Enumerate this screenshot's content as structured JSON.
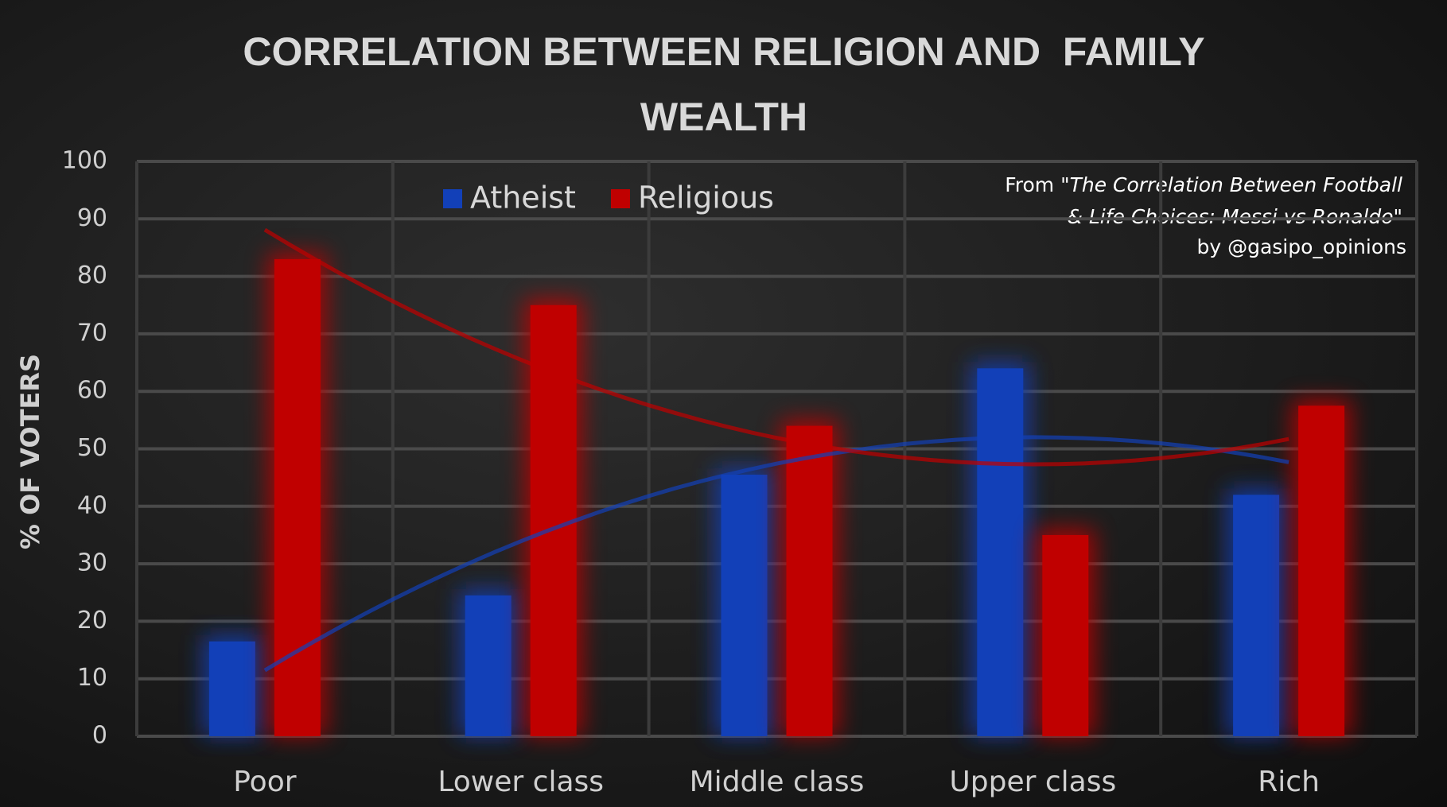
{
  "chart_data": {
    "type": "bar",
    "title": "CORRELATION BETWEEN RELIGION AND  FAMILY WEALTH",
    "y_label": "% OF VOTERS",
    "source_lines": [
      "From \"",
      "The Correlation Between Football",
      "& Life Choices: Messi vs Ronaldo",
      "\"",
      "by @gasipo_opinions"
    ],
    "categories": [
      "Poor",
      "Lower class",
      "Middle class",
      "Upper class",
      "Rich"
    ],
    "series": [
      {
        "name": "Atheist",
        "color": "#1240b8",
        "values": [
          16.5,
          24.5,
          45.5,
          64,
          42
        ]
      },
      {
        "name": "Religious",
        "color": "#c00000",
        "values": [
          83,
          75,
          54,
          35,
          57.5
        ]
      }
    ],
    "ylim": [
      0,
      100
    ],
    "yticks": [
      0,
      10,
      20,
      30,
      40,
      50,
      60,
      70,
      80,
      90,
      100
    ],
    "grid": true,
    "trendline": "polynomial",
    "legend": "top"
  }
}
